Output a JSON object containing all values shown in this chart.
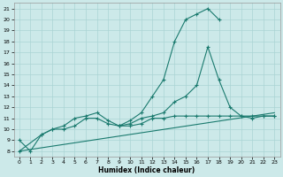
{
  "xlabel": "Humidex (Indice chaleur)",
  "bg_color": "#cce9e9",
  "grid_color": "#aad4d4",
  "line_color": "#1a7a6e",
  "xlim": [
    -0.5,
    23.5
  ],
  "ylim": [
    7.5,
    21.5
  ],
  "xticks": [
    0,
    1,
    2,
    3,
    4,
    5,
    6,
    7,
    8,
    9,
    10,
    11,
    12,
    13,
    14,
    15,
    16,
    17,
    18,
    19,
    20,
    21,
    22,
    23
  ],
  "yticks": [
    8,
    9,
    10,
    11,
    12,
    13,
    14,
    15,
    16,
    17,
    18,
    19,
    20,
    21
  ],
  "line1_x": [
    0,
    1,
    2,
    3,
    4,
    5,
    6,
    7,
    8,
    9,
    10,
    11,
    12,
    13,
    14,
    15,
    16,
    17,
    18
  ],
  "line1_y": [
    9.0,
    8.0,
    9.5,
    10.0,
    10.3,
    11.0,
    11.2,
    11.5,
    10.8,
    10.3,
    10.8,
    11.5,
    13.0,
    14.5,
    18.0,
    20.0,
    20.5,
    21.0,
    20.0
  ],
  "line2_x": [
    9,
    10,
    11,
    12,
    13,
    14,
    15,
    16,
    17,
    18,
    19,
    20,
    21,
    22,
    23
  ],
  "line2_y": [
    10.3,
    10.5,
    11.0,
    11.2,
    11.5,
    12.5,
    13.0,
    14.0,
    17.5,
    14.5,
    12.0,
    11.2,
    11.0,
    11.2,
    11.2
  ],
  "line3_x": [
    0,
    2,
    3,
    4,
    5,
    6,
    7,
    8,
    9,
    10,
    11,
    12,
    13,
    14,
    15,
    16,
    17,
    18,
    19,
    20,
    21,
    22,
    23
  ],
  "line3_y": [
    8.0,
    9.5,
    10.0,
    10.0,
    10.3,
    11.0,
    11.0,
    10.5,
    10.3,
    10.3,
    10.5,
    11.0,
    11.0,
    11.2,
    11.2,
    11.2,
    11.2,
    11.2,
    11.2,
    11.2,
    11.2,
    11.2,
    11.2
  ],
  "line4_x": [
    0,
    23
  ],
  "line4_y": [
    8.0,
    11.5
  ]
}
